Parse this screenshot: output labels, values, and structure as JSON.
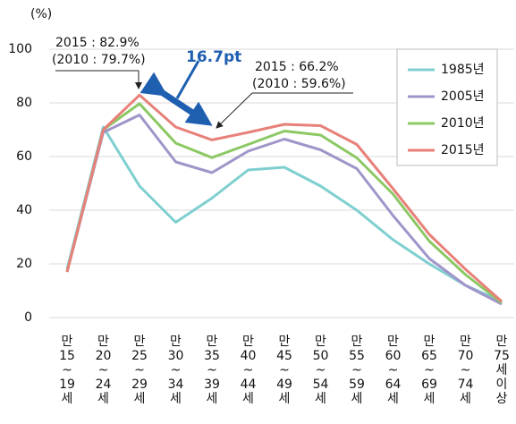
{
  "chart_data": {
    "type": "line",
    "y_unit": "(%)",
    "categories": [
      [
        "만",
        "15",
        "~",
        "19",
        "세"
      ],
      [
        "만",
        "20",
        "~",
        "24",
        "세"
      ],
      [
        "만",
        "25",
        "~",
        "29",
        "세"
      ],
      [
        "만",
        "30",
        "~",
        "34",
        "세"
      ],
      [
        "만",
        "35",
        "~",
        "39",
        "세"
      ],
      [
        "만",
        "40",
        "~",
        "44",
        "세"
      ],
      [
        "만",
        "45",
        "~",
        "49",
        "세"
      ],
      [
        "만",
        "50",
        "~",
        "54",
        "세"
      ],
      [
        "만",
        "55",
        "~",
        "59",
        "세"
      ],
      [
        "만",
        "60",
        "~",
        "64",
        "세"
      ],
      [
        "만",
        "65",
        "~",
        "69",
        "세"
      ],
      [
        "만",
        "70",
        "~",
        "74",
        "세"
      ],
      [
        "만",
        "75",
        "세",
        "이",
        "상"
      ]
    ],
    "series": [
      {
        "name": "1985년",
        "color": "#7fcfd0",
        "values": [
          18,
          71,
          49,
          35.5,
          44.5,
          55,
          56,
          49,
          40,
          29,
          20,
          12,
          6
        ]
      },
      {
        "name": "2005년",
        "color": "#a095c9",
        "values": [
          17,
          69,
          75.5,
          58,
          54,
          62,
          66.5,
          62.5,
          55.5,
          38,
          22,
          12,
          5
        ]
      },
      {
        "name": "2010년",
        "color": "#8cc864",
        "values": [
          17,
          70,
          79.7,
          65,
          59.6,
          64.5,
          69.5,
          68,
          59.5,
          46,
          28.5,
          16,
          5.5
        ]
      },
      {
        "name": "2015년",
        "color": "#e8807a",
        "values": [
          17,
          70,
          82.9,
          71,
          66.2,
          69,
          72,
          71.5,
          64.5,
          48,
          31,
          18,
          6
        ]
      }
    ],
    "ylim": [
      0,
      105
    ],
    "yticks": [
      0,
      20,
      40,
      60,
      80,
      100
    ],
    "grid": true,
    "legend": "upper right",
    "annotations": [
      "2015 : 82.9%",
      "(2010 : 79.7%)",
      "16.7pt",
      "2015 : 66.2%",
      "(2010 : 59.6%)"
    ]
  }
}
